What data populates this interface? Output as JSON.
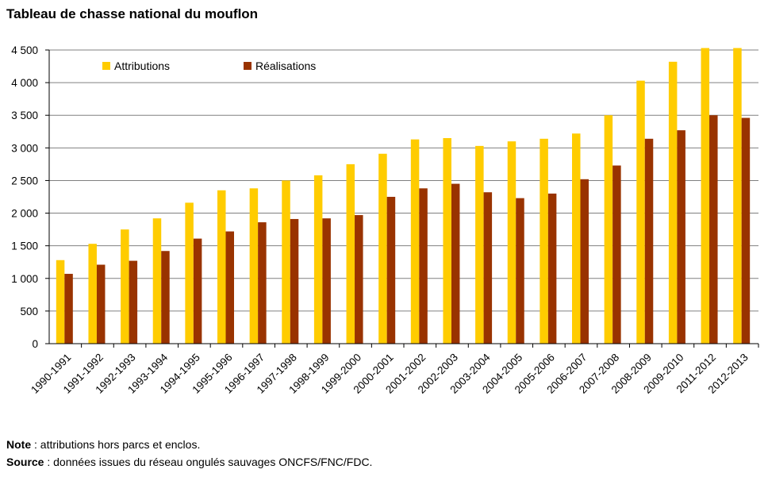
{
  "title": "Tableau de chasse national du mouflon",
  "notes": {
    "note_label": "Note",
    "note_text": " : attributions hors parcs et enclos.",
    "source_label": "Source",
    "source_text": " : données issues du réseau ongulés sauvages ONCFS/FNC/FDC."
  },
  "colors": {
    "attributions": "#FFCC00",
    "realisations": "#993300",
    "grid": "#808080"
  },
  "chart_data": {
    "type": "bar",
    "title": "Tableau de chasse national du mouflon",
    "xlabel": "",
    "ylabel": "",
    "ylim": [
      0,
      4500
    ],
    "yticks": [
      0,
      500,
      1000,
      1500,
      2000,
      2500,
      3000,
      3500,
      4000,
      4500
    ],
    "ytick_labels": [
      "0",
      "500",
      "1 000",
      "1 500",
      "2 000",
      "2 500",
      "3 000",
      "3 500",
      "4 000",
      "4 500"
    ],
    "grid": true,
    "legend_position": "top-left",
    "categories": [
      "1990-1991",
      "1991-1992",
      "1992-1993",
      "1993-1994",
      "1994-1995",
      "1995-1996",
      "1996-1997",
      "1997-1998",
      "1998-1999",
      "1999-2000",
      "2000-2001",
      "2001-2002",
      "2002-2003",
      "2003-2004",
      "2004-2005",
      "2005-2006",
      "2006-2007",
      "2007-2008",
      "2008-2009",
      "2009-2010",
      "2011-2012",
      "2012-2013"
    ],
    "series": [
      {
        "name": "Attributions",
        "values": [
          1280,
          1530,
          1750,
          1920,
          2160,
          2350,
          2380,
          2500,
          2580,
          2750,
          2910,
          3130,
          3150,
          3030,
          3100,
          3140,
          3220,
          3500,
          4030,
          4320,
          4530,
          4530
        ]
      },
      {
        "name": "Réalisations",
        "values": [
          1070,
          1210,
          1270,
          1420,
          1610,
          1720,
          1860,
          1910,
          1920,
          1970,
          2250,
          2380,
          2450,
          2320,
          2230,
          2300,
          2520,
          2730,
          3140,
          3270,
          3500,
          3460
        ]
      }
    ]
  }
}
